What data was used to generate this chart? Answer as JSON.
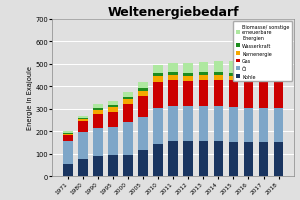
{
  "title": "Weltenergiebedarf",
  "ylabel": "Energie in Exajoule",
  "years": [
    "1971",
    "1980",
    "1990",
    "1995",
    "2000",
    "2005",
    "2010",
    "2011",
    "2012",
    "2013",
    "2014",
    "2015",
    "2016",
    "2017",
    "2018"
  ],
  "kohle": [
    55,
    75,
    88,
    92,
    95,
    115,
    145,
    155,
    155,
    155,
    155,
    150,
    150,
    150,
    150
  ],
  "oel": [
    100,
    120,
    125,
    125,
    145,
    150,
    160,
    155,
    155,
    155,
    158,
    158,
    155,
    155,
    155
  ],
  "gas": [
    30,
    50,
    65,
    70,
    80,
    90,
    115,
    118,
    115,
    118,
    115,
    118,
    120,
    125,
    130
  ],
  "kernenergie": [
    2,
    8,
    18,
    20,
    23,
    25,
    25,
    22,
    20,
    20,
    20,
    20,
    20,
    20,
    22
  ],
  "wasserkraft": [
    4,
    6,
    8,
    9,
    9,
    10,
    12,
    12,
    13,
    13,
    13,
    13,
    13,
    14,
    14
  ],
  "biomasse": [
    8,
    10,
    15,
    18,
    22,
    27,
    38,
    42,
    45,
    47,
    50,
    52,
    55,
    57,
    60
  ],
  "colors": {
    "kohle": "#1a3560",
    "oel": "#7ea6c8",
    "gas": "#cc0000",
    "kernenergie": "#f5a800",
    "wasserkraft": "#1e8c1e",
    "biomasse": "#aee8a0"
  },
  "ylim": [
    0,
    700
  ],
  "yticks": [
    0,
    100,
    200,
    300,
    400,
    500,
    600,
    700
  ],
  "background_color": "#e0e0e0",
  "plot_bgcolor": "#e0e0e0",
  "legend_labels": [
    "Biomasse/ sonstige\nerneuerbare\nEnergien",
    "Wasserkraft",
    "Kernenergie",
    "Gas",
    "Öl",
    "Kohle"
  ]
}
